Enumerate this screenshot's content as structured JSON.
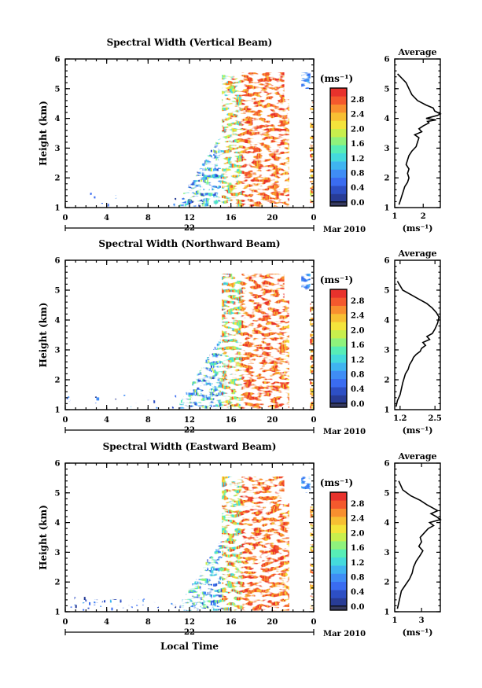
{
  "chart_data": [
    {
      "type": "heatmap",
      "title": "Spectral Width (Vertical Beam)",
      "ylabel": "Height (km)",
      "xticks": [
        "0",
        "4",
        "8",
        "12",
        "16",
        "20",
        "0"
      ],
      "xlim": [
        0,
        24
      ],
      "date_day": "22",
      "date_month": "Mar 2010",
      "yticks": [
        "1",
        "2",
        "3",
        "4",
        "5",
        "6"
      ],
      "ylim": [
        1,
        6
      ],
      "colorbar": {
        "unit": "(ms⁻¹)",
        "labels": [
          "0.0",
          "0.4",
          "0.8",
          "1.2",
          "1.6",
          "2.0",
          "2.4",
          "2.8"
        ],
        "range": [
          0.0,
          3.0
        ]
      },
      "profile": {
        "title": "Average",
        "xlabel": "(ms⁻¹)",
        "xticks": [
          "1",
          "2"
        ],
        "xlim": [
          1,
          2.6
        ],
        "yticks": [
          "1",
          "2",
          "3",
          "4",
          "5",
          "6"
        ],
        "ylim": [
          1,
          6
        ],
        "width": [
          1.15,
          1.2,
          1.25,
          1.3,
          1.35,
          1.45,
          1.5,
          1.45,
          1.5,
          1.4,
          1.45,
          1.5,
          1.6,
          1.75,
          1.8,
          1.85,
          1.7,
          1.95,
          1.85,
          2.0,
          2.2,
          2.15,
          2.45,
          2.1,
          2.3,
          2.5,
          2.6,
          2.4,
          2.35,
          2.1,
          1.8,
          1.6,
          1.5,
          1.4,
          1.1
        ],
        "heights": [
          1.1,
          1.25,
          1.4,
          1.55,
          1.7,
          1.85,
          2.0,
          2.15,
          2.3,
          2.45,
          2.6,
          2.75,
          2.9,
          3.05,
          3.2,
          3.35,
          3.45,
          3.55,
          3.65,
          3.75,
          3.85,
          3.9,
          3.95,
          4.0,
          4.05,
          4.1,
          4.15,
          4.25,
          4.35,
          4.45,
          4.6,
          4.8,
          5.0,
          5.2,
          5.5
        ]
      }
    },
    {
      "type": "heatmap",
      "title": "Spectral Width (Northward Beam)",
      "ylabel": "Height (km)",
      "xticks": [
        "0",
        "4",
        "8",
        "12",
        "16",
        "20",
        "0"
      ],
      "xlim": [
        0,
        24
      ],
      "date_day": "22",
      "date_month": "Mar 2010",
      "yticks": [
        "1",
        "2",
        "3",
        "4",
        "5",
        "6"
      ],
      "ylim": [
        1,
        6
      ],
      "colorbar": {
        "unit": "(ms⁻¹)",
        "labels": [
          "0.0",
          "0.4",
          "0.8",
          "1.2",
          "1.6",
          "2.0",
          "2.4",
          "2.8"
        ],
        "range": [
          0.0,
          3.0
        ]
      },
      "profile": {
        "title": "Average",
        "xlabel": "(ms⁻¹)",
        "xticks": [
          "1.2",
          "2.5"
        ],
        "xlim": [
          1.0,
          2.7
        ],
        "yticks": [
          "1",
          "2",
          "3",
          "4",
          "5",
          "6"
        ],
        "ylim": [
          1,
          6
        ],
        "width": [
          1.05,
          1.1,
          1.2,
          1.25,
          1.3,
          1.35,
          1.4,
          1.5,
          1.55,
          1.65,
          1.7,
          1.8,
          1.95,
          2.0,
          2.15,
          2.05,
          2.3,
          2.2,
          2.4,
          2.5,
          2.6,
          2.65,
          2.55,
          2.4,
          2.2,
          1.9,
          1.6,
          1.3,
          1.1
        ],
        "heights": [
          1.1,
          1.3,
          1.5,
          1.7,
          1.9,
          2.05,
          2.2,
          2.35,
          2.5,
          2.65,
          2.75,
          2.85,
          2.95,
          3.05,
          3.15,
          3.25,
          3.35,
          3.45,
          3.55,
          3.7,
          3.9,
          4.1,
          4.25,
          4.4,
          4.55,
          4.7,
          4.85,
          5.0,
          5.3
        ]
      }
    },
    {
      "type": "heatmap",
      "title": "Spectral Width (Eastward Beam)",
      "ylabel": "Height (km)",
      "xticks": [
        "0",
        "4",
        "8",
        "12",
        "16",
        "20",
        "0"
      ],
      "xlim": [
        0,
        24
      ],
      "date_day": "22",
      "date_month": "Mar 2010",
      "xlabel": "Local Time",
      "yticks": [
        "1",
        "2",
        "3",
        "4",
        "5",
        "6"
      ],
      "ylim": [
        1,
        6
      ],
      "colorbar": {
        "unit": "(ms⁻¹)",
        "labels": [
          "0.0",
          "0.4",
          "0.8",
          "1.2",
          "1.6",
          "2.0",
          "2.4",
          "2.8"
        ],
        "range": [
          0.0,
          3.0
        ]
      },
      "profile": {
        "title": "Average",
        "xlabel": "(ms⁻¹)",
        "xticks": [
          "1",
          "3"
        ],
        "xlim": [
          1,
          4.4
        ],
        "yticks": [
          "1",
          "2",
          "3",
          "4",
          "5",
          "6"
        ],
        "ylim": [
          1,
          6
        ],
        "width": [
          1.2,
          1.3,
          1.4,
          1.5,
          1.8,
          2.1,
          2.3,
          2.4,
          2.6,
          2.9,
          3.1,
          2.8,
          3.0,
          2.9,
          3.2,
          3.5,
          3.9,
          3.6,
          4.4,
          4.1,
          3.7,
          4.2,
          3.8,
          3.4,
          2.9,
          2.2,
          1.6,
          1.3
        ],
        "heights": [
          1.1,
          1.3,
          1.5,
          1.7,
          1.9,
          2.1,
          2.3,
          2.5,
          2.7,
          2.9,
          3.05,
          3.2,
          3.35,
          3.5,
          3.65,
          3.8,
          3.9,
          4.0,
          4.1,
          4.2,
          4.3,
          4.4,
          4.5,
          4.6,
          4.75,
          4.9,
          5.1,
          5.4
        ]
      }
    }
  ]
}
